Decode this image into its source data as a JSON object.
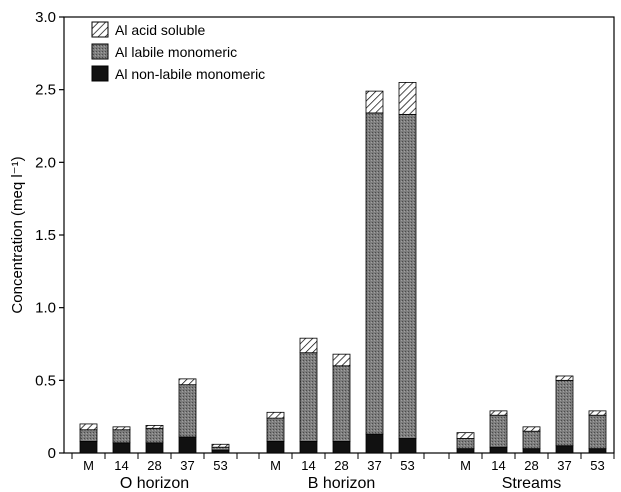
{
  "chart_data": {
    "type": "bar",
    "stacked": true,
    "title": "",
    "ylabel": "Concentration (meq l⁻¹)",
    "ylim": [
      0,
      3.0
    ],
    "yticks": [
      "0",
      "0.5",
      "1.0",
      "1.5",
      "2.0",
      "2.5",
      "3.0"
    ],
    "ytick_values": [
      0,
      0.5,
      1.0,
      1.5,
      2.0,
      2.5,
      3.0
    ],
    "grid": false,
    "legend_position": "top-left",
    "groups": [
      {
        "label": "O horizon",
        "categories": [
          "M",
          "14",
          "28",
          "37",
          "53"
        ]
      },
      {
        "label": "B horizon",
        "categories": [
          "M",
          "14",
          "28",
          "37",
          "53"
        ]
      },
      {
        "label": "Streams",
        "categories": [
          "M",
          "14",
          "28",
          "37",
          "53"
        ]
      }
    ],
    "series": [
      {
        "name": "Al non-labile monomeric",
        "color": "#111111",
        "values": [
          0.08,
          0.07,
          0.07,
          0.11,
          0.02,
          0.08,
          0.08,
          0.08,
          0.13,
          0.1,
          0.03,
          0.04,
          0.03,
          0.05,
          0.03
        ]
      },
      {
        "name": "Al labile monomeric",
        "color": "#7a7a7a",
        "values": [
          0.08,
          0.09,
          0.1,
          0.36,
          0.02,
          0.16,
          0.61,
          0.52,
          2.21,
          2.23,
          0.07,
          0.22,
          0.12,
          0.45,
          0.23
        ]
      },
      {
        "name": "Al acid soluble",
        "color": "hatched",
        "values": [
          0.04,
          0.02,
          0.02,
          0.04,
          0.02,
          0.04,
          0.1,
          0.08,
          0.15,
          0.22,
          0.04,
          0.03,
          0.03,
          0.03,
          0.03
        ]
      }
    ],
    "legend_order": [
      "Al acid soluble",
      "Al labile monomeric",
      "Al non-labile monomeric"
    ]
  }
}
